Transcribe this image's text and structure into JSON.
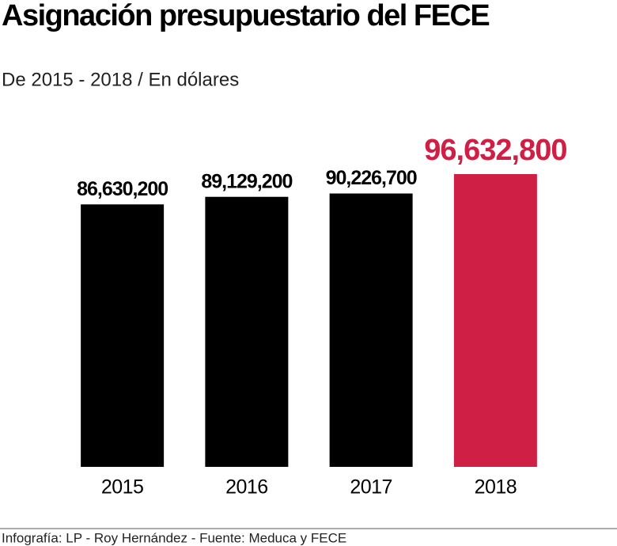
{
  "chart_data": {
    "type": "bar",
    "title": "Asignación presupuestario del FECE",
    "subtitle": "De 2015 - 2018 / En dólares",
    "categories": [
      "2015",
      "2016",
      "2017",
      "2018"
    ],
    "values": [
      86630200,
      89129200,
      90226700,
      96632800
    ],
    "value_labels": [
      "86,630,200",
      "89,129,200",
      "90,226,700",
      "96,632,800"
    ],
    "colors": [
      "#000000",
      "#000000",
      "#000000",
      "#d01f45"
    ],
    "source": "Infografía: LP - Roy Hernández - Fuente: Meduca y FECE"
  }
}
